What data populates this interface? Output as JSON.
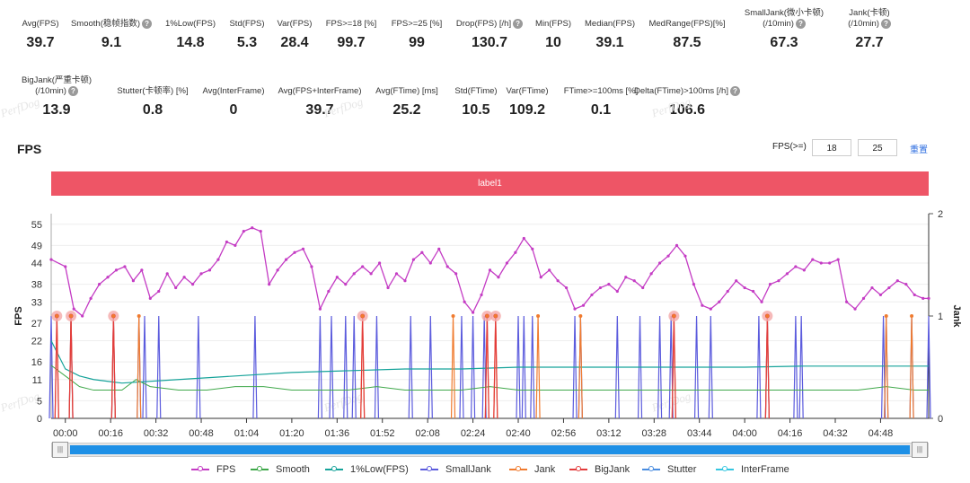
{
  "metrics_row1": [
    {
      "label": "Avg(FPS)",
      "value": "39.7",
      "help": false
    },
    {
      "label": "Smooth(稳帧指数)",
      "value": "9.1",
      "help": true
    },
    {
      "label": "1%Low(FPS)",
      "value": "14.8",
      "help": false
    },
    {
      "label": "Std(FPS)",
      "value": "5.3",
      "help": false
    },
    {
      "label": "Var(FPS)",
      "value": "28.4",
      "help": false
    },
    {
      "label": "FPS>=18 [%]",
      "value": "99.7",
      "help": false
    },
    {
      "label": "FPS>=25 [%]",
      "value": "99",
      "help": false
    },
    {
      "label": "Drop(FPS) [/h]",
      "value": "130.7",
      "help": true
    },
    {
      "label": "Min(FPS)",
      "value": "10",
      "help": false
    },
    {
      "label": "Median(FPS)",
      "value": "39.1",
      "help": false
    },
    {
      "label": "MedRange(FPS)[%]",
      "value": "87.5",
      "help": false
    },
    {
      "label": "SmallJank(微小卡顿)",
      "label2": "(/10min)",
      "value": "67.3",
      "help": true
    },
    {
      "label": "Jank(卡顿)",
      "label2": "(/10min)",
      "value": "27.7",
      "help": true
    }
  ],
  "metrics_row2": [
    {
      "label": "BigJank(严重卡顿)",
      "label2": "(/10min)",
      "value": "13.9",
      "help": true
    },
    {
      "label": "Stutter(卡顿率) [%]",
      "value": "0.8",
      "help": false
    },
    {
      "label": "Avg(InterFrame)",
      "value": "0",
      "help": false
    },
    {
      "label": "Avg(FPS+InterFrame)",
      "value": "39.7",
      "help": false
    },
    {
      "label": "Avg(FTime) [ms]",
      "value": "25.2",
      "help": false
    },
    {
      "label": "Std(FTime)",
      "value": "10.5",
      "help": false
    },
    {
      "label": "Var(FTime)",
      "value": "109.2",
      "help": false
    },
    {
      "label": "FTime>=100ms [%]",
      "value": "0.1",
      "help": false
    },
    {
      "label": "Delta(FTime)>100ms [/h]",
      "value": "106.6",
      "help": true
    }
  ],
  "watermark": "PerfDog",
  "help_glyph": "?",
  "section_title": "FPS",
  "threshold": {
    "label": "FPS(>=)",
    "value1": "18",
    "value2": "25",
    "reset": "重置"
  },
  "label_bar": "label1",
  "slider": {
    "left_handle": "|||",
    "right_handle": "|||",
    "range_start": 0.0,
    "range_end": 1.0
  },
  "colors": {
    "fps": "#c43cc4",
    "smooth": "#3fa84a",
    "low1": "#16a39a",
    "smalljank": "#5b5bdd",
    "jank": "#f07b2f",
    "bigjank": "#e33b3b",
    "stutter": "#4a8de0",
    "interframe": "#35c6e0",
    "label_bar": "#ee5566",
    "slider": "#1e90e6"
  },
  "chart_data": {
    "type": "line",
    "ylabel_left": "FPS",
    "ylabel_right": "Jank",
    "yticks_left": [
      0,
      5,
      11,
      16,
      22,
      27,
      33,
      38,
      44,
      49,
      55
    ],
    "yticks_right": [
      0,
      1,
      2
    ],
    "ylim_left": [
      0,
      58
    ],
    "ylim_right": [
      0,
      2
    ],
    "xticks": [
      "00:00",
      "00:16",
      "00:32",
      "00:48",
      "01:04",
      "01:20",
      "01:36",
      "01:52",
      "02:08",
      "02:24",
      "02:40",
      "02:56",
      "03:12",
      "03:28",
      "03:44",
      "04:00",
      "04:16",
      "04:32",
      "04:48"
    ],
    "x_range_seconds": [
      -5,
      305
    ],
    "grid": "horizontal",
    "legend_position": "bottom",
    "series": [
      {
        "name": "FPS",
        "axis": "left",
        "points": [
          [
            -5,
            45
          ],
          [
            0,
            43
          ],
          [
            3,
            31
          ],
          [
            6,
            29
          ],
          [
            9,
            34
          ],
          [
            12,
            38
          ],
          [
            15,
            40
          ],
          [
            18,
            42
          ],
          [
            21,
            43
          ],
          [
            24,
            39
          ],
          [
            27,
            42
          ],
          [
            30,
            34
          ],
          [
            33,
            36
          ],
          [
            36,
            41
          ],
          [
            39,
            37
          ],
          [
            42,
            40
          ],
          [
            45,
            38
          ],
          [
            48,
            41
          ],
          [
            51,
            42
          ],
          [
            54,
            45
          ],
          [
            57,
            50
          ],
          [
            60,
            49
          ],
          [
            63,
            53
          ],
          [
            66,
            54
          ],
          [
            69,
            53
          ],
          [
            72,
            38
          ],
          [
            75,
            42
          ],
          [
            78,
            45
          ],
          [
            81,
            47
          ],
          [
            84,
            48
          ],
          [
            87,
            43
          ],
          [
            90,
            31
          ],
          [
            93,
            36
          ],
          [
            96,
            40
          ],
          [
            99,
            38
          ],
          [
            102,
            41
          ],
          [
            105,
            43
          ],
          [
            108,
            41
          ],
          [
            111,
            44
          ],
          [
            114,
            37
          ],
          [
            117,
            41
          ],
          [
            120,
            39
          ],
          [
            123,
            45
          ],
          [
            126,
            47
          ],
          [
            129,
            44
          ],
          [
            132,
            48
          ],
          [
            135,
            43
          ],
          [
            138,
            41
          ],
          [
            141,
            33
          ],
          [
            144,
            30
          ],
          [
            147,
            35
          ],
          [
            150,
            42
          ],
          [
            153,
            40
          ],
          [
            156,
            44
          ],
          [
            159,
            47
          ],
          [
            162,
            51
          ],
          [
            165,
            48
          ],
          [
            168,
            40
          ],
          [
            171,
            42
          ],
          [
            174,
            39
          ],
          [
            177,
            37
          ],
          [
            180,
            31
          ],
          [
            183,
            32
          ],
          [
            186,
            35
          ],
          [
            189,
            37
          ],
          [
            192,
            38
          ],
          [
            195,
            36
          ],
          [
            198,
            40
          ],
          [
            201,
            39
          ],
          [
            204,
            37
          ],
          [
            207,
            41
          ],
          [
            210,
            44
          ],
          [
            213,
            46
          ],
          [
            216,
            49
          ],
          [
            219,
            46
          ],
          [
            222,
            38
          ],
          [
            225,
            32
          ],
          [
            228,
            31
          ],
          [
            231,
            33
          ],
          [
            234,
            36
          ],
          [
            237,
            39
          ],
          [
            240,
            37
          ],
          [
            243,
            36
          ],
          [
            246,
            33
          ],
          [
            249,
            38
          ],
          [
            252,
            39
          ],
          [
            255,
            41
          ],
          [
            258,
            43
          ],
          [
            261,
            42
          ],
          [
            264,
            45
          ],
          [
            267,
            44
          ],
          [
            270,
            44
          ],
          [
            273,
            45
          ],
          [
            276,
            33
          ],
          [
            279,
            31
          ],
          [
            282,
            34
          ],
          [
            285,
            37
          ],
          [
            288,
            35
          ],
          [
            291,
            37
          ],
          [
            294,
            39
          ],
          [
            297,
            38
          ],
          [
            300,
            35
          ],
          [
            303,
            34
          ],
          [
            305,
            34
          ]
        ]
      },
      {
        "name": "Smooth",
        "axis": "left",
        "points": [
          [
            -5,
            15
          ],
          [
            0,
            12
          ],
          [
            5,
            9
          ],
          [
            10,
            8
          ],
          [
            20,
            8
          ],
          [
            25,
            11
          ],
          [
            30,
            9
          ],
          [
            40,
            8
          ],
          [
            50,
            8
          ],
          [
            60,
            9
          ],
          [
            70,
            9
          ],
          [
            80,
            8
          ],
          [
            90,
            8
          ],
          [
            100,
            8
          ],
          [
            110,
            9
          ],
          [
            120,
            8
          ],
          [
            130,
            8
          ],
          [
            140,
            8
          ],
          [
            150,
            9
          ],
          [
            160,
            8
          ],
          [
            170,
            8
          ],
          [
            180,
            8
          ],
          [
            190,
            8
          ],
          [
            200,
            8
          ],
          [
            210,
            8
          ],
          [
            220,
            8
          ],
          [
            230,
            8
          ],
          [
            240,
            8
          ],
          [
            250,
            8
          ],
          [
            260,
            8
          ],
          [
            270,
            8
          ],
          [
            280,
            8
          ],
          [
            290,
            9
          ],
          [
            300,
            8
          ],
          [
            305,
            8
          ]
        ]
      },
      {
        "name": "1%Low(FPS)",
        "axis": "left",
        "points": [
          [
            -5,
            22
          ],
          [
            0,
            14
          ],
          [
            5,
            12
          ],
          [
            10,
            11
          ],
          [
            20,
            10
          ],
          [
            40,
            11
          ],
          [
            60,
            12
          ],
          [
            80,
            13
          ],
          [
            100,
            13.5
          ],
          [
            120,
            14
          ],
          [
            140,
            14
          ],
          [
            160,
            14.5
          ],
          [
            180,
            14.5
          ],
          [
            200,
            14.5
          ],
          [
            220,
            14.5
          ],
          [
            240,
            14.5
          ],
          [
            260,
            14.8
          ],
          [
            280,
            14.8
          ],
          [
            305,
            14.8
          ]
        ]
      },
      {
        "name": "SmallJank",
        "axis": "right",
        "events": [
          -5,
          2,
          17,
          26,
          28,
          33,
          47,
          67,
          90,
          94,
          99,
          102,
          110,
          122,
          129,
          140,
          144,
          148,
          160,
          162,
          165,
          180,
          182,
          195,
          203,
          210,
          214,
          223,
          228,
          245,
          248,
          258,
          260,
          289,
          290,
          299,
          305
        ]
      },
      {
        "name": "Jank",
        "axis": "right",
        "events": [
          -3,
          2,
          17,
          26,
          105,
          137,
          149,
          152,
          167,
          182,
          215,
          248,
          290,
          299
        ]
      },
      {
        "name": "BigJank",
        "axis": "right",
        "events": [
          -3,
          2,
          17,
          105,
          149,
          152,
          215,
          248
        ]
      },
      {
        "name": "Stutter",
        "axis": "right",
        "events": []
      },
      {
        "name": "InterFrame",
        "axis": "right",
        "events": []
      }
    ]
  }
}
